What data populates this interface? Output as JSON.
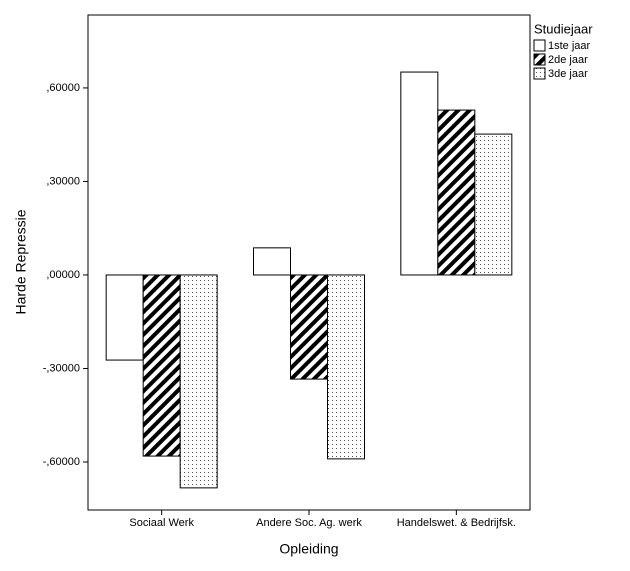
{
  "chart_data": {
    "type": "bar",
    "y_label": "Harde Repressie",
    "x_label": "Opleiding",
    "legend_title": "Studiejaar",
    "legend_position": "right",
    "categories": [
      "Sociaal Werk",
      "Andere Soc. Ag. werk",
      "Handelswet. & Bedrijfsk."
    ],
    "series": [
      {
        "name": "1ste jaar",
        "color": "#ffffff",
        "pattern": "none",
        "values": [
          -0.273,
          0.087,
          0.651
        ]
      },
      {
        "name": "2de jaar",
        "color": "#000000",
        "pattern": "hatch",
        "values": [
          -0.581,
          -0.334,
          0.529
        ]
      },
      {
        "name": "3de jaar",
        "color": "#555555",
        "pattern": "dots",
        "values": [
          -0.683,
          -0.59,
          0.452
        ]
      }
    ],
    "ylim": [
      -0.754,
      0.834
    ],
    "yticks": [
      {
        "value": -0.6,
        "label": "-,60000"
      },
      {
        "value": -0.3,
        "label": "-,30000"
      },
      {
        "value": 0,
        "label": ",00000"
      },
      {
        "value": 0.3,
        "label": ",30000"
      },
      {
        "value": 0.6,
        "label": ",60000"
      }
    ],
    "grid": false
  }
}
